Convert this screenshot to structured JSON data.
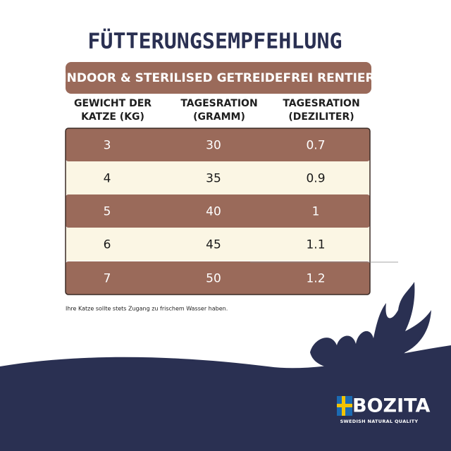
{
  "header": {
    "title": "FÜTTERUNGSEMPFEHLUNG",
    "subtitle": "INDOOR & STERILISED GETREIDEFREI RENTIER"
  },
  "table": {
    "columns": [
      [
        "GEWICHT DER",
        "KATZE (KG)"
      ],
      [
        "TAGESRATION",
        "(GRAMM)"
      ],
      [
        "TAGESRATION",
        "(DEZILITER)"
      ]
    ],
    "rows": [
      [
        "3",
        "30",
        "0.7"
      ],
      [
        "4",
        "35",
        "0.9"
      ],
      [
        "5",
        "40",
        "1"
      ],
      [
        "6",
        "45",
        "1.1"
      ],
      [
        "7",
        "50",
        "1.2"
      ]
    ]
  },
  "footnote": "Ihre Katze sollte stets Zugang zu frischem Wasser haben.",
  "brand": {
    "name": "BOZITA",
    "tagline": "SWEDISH NATURAL QUALITY"
  }
}
